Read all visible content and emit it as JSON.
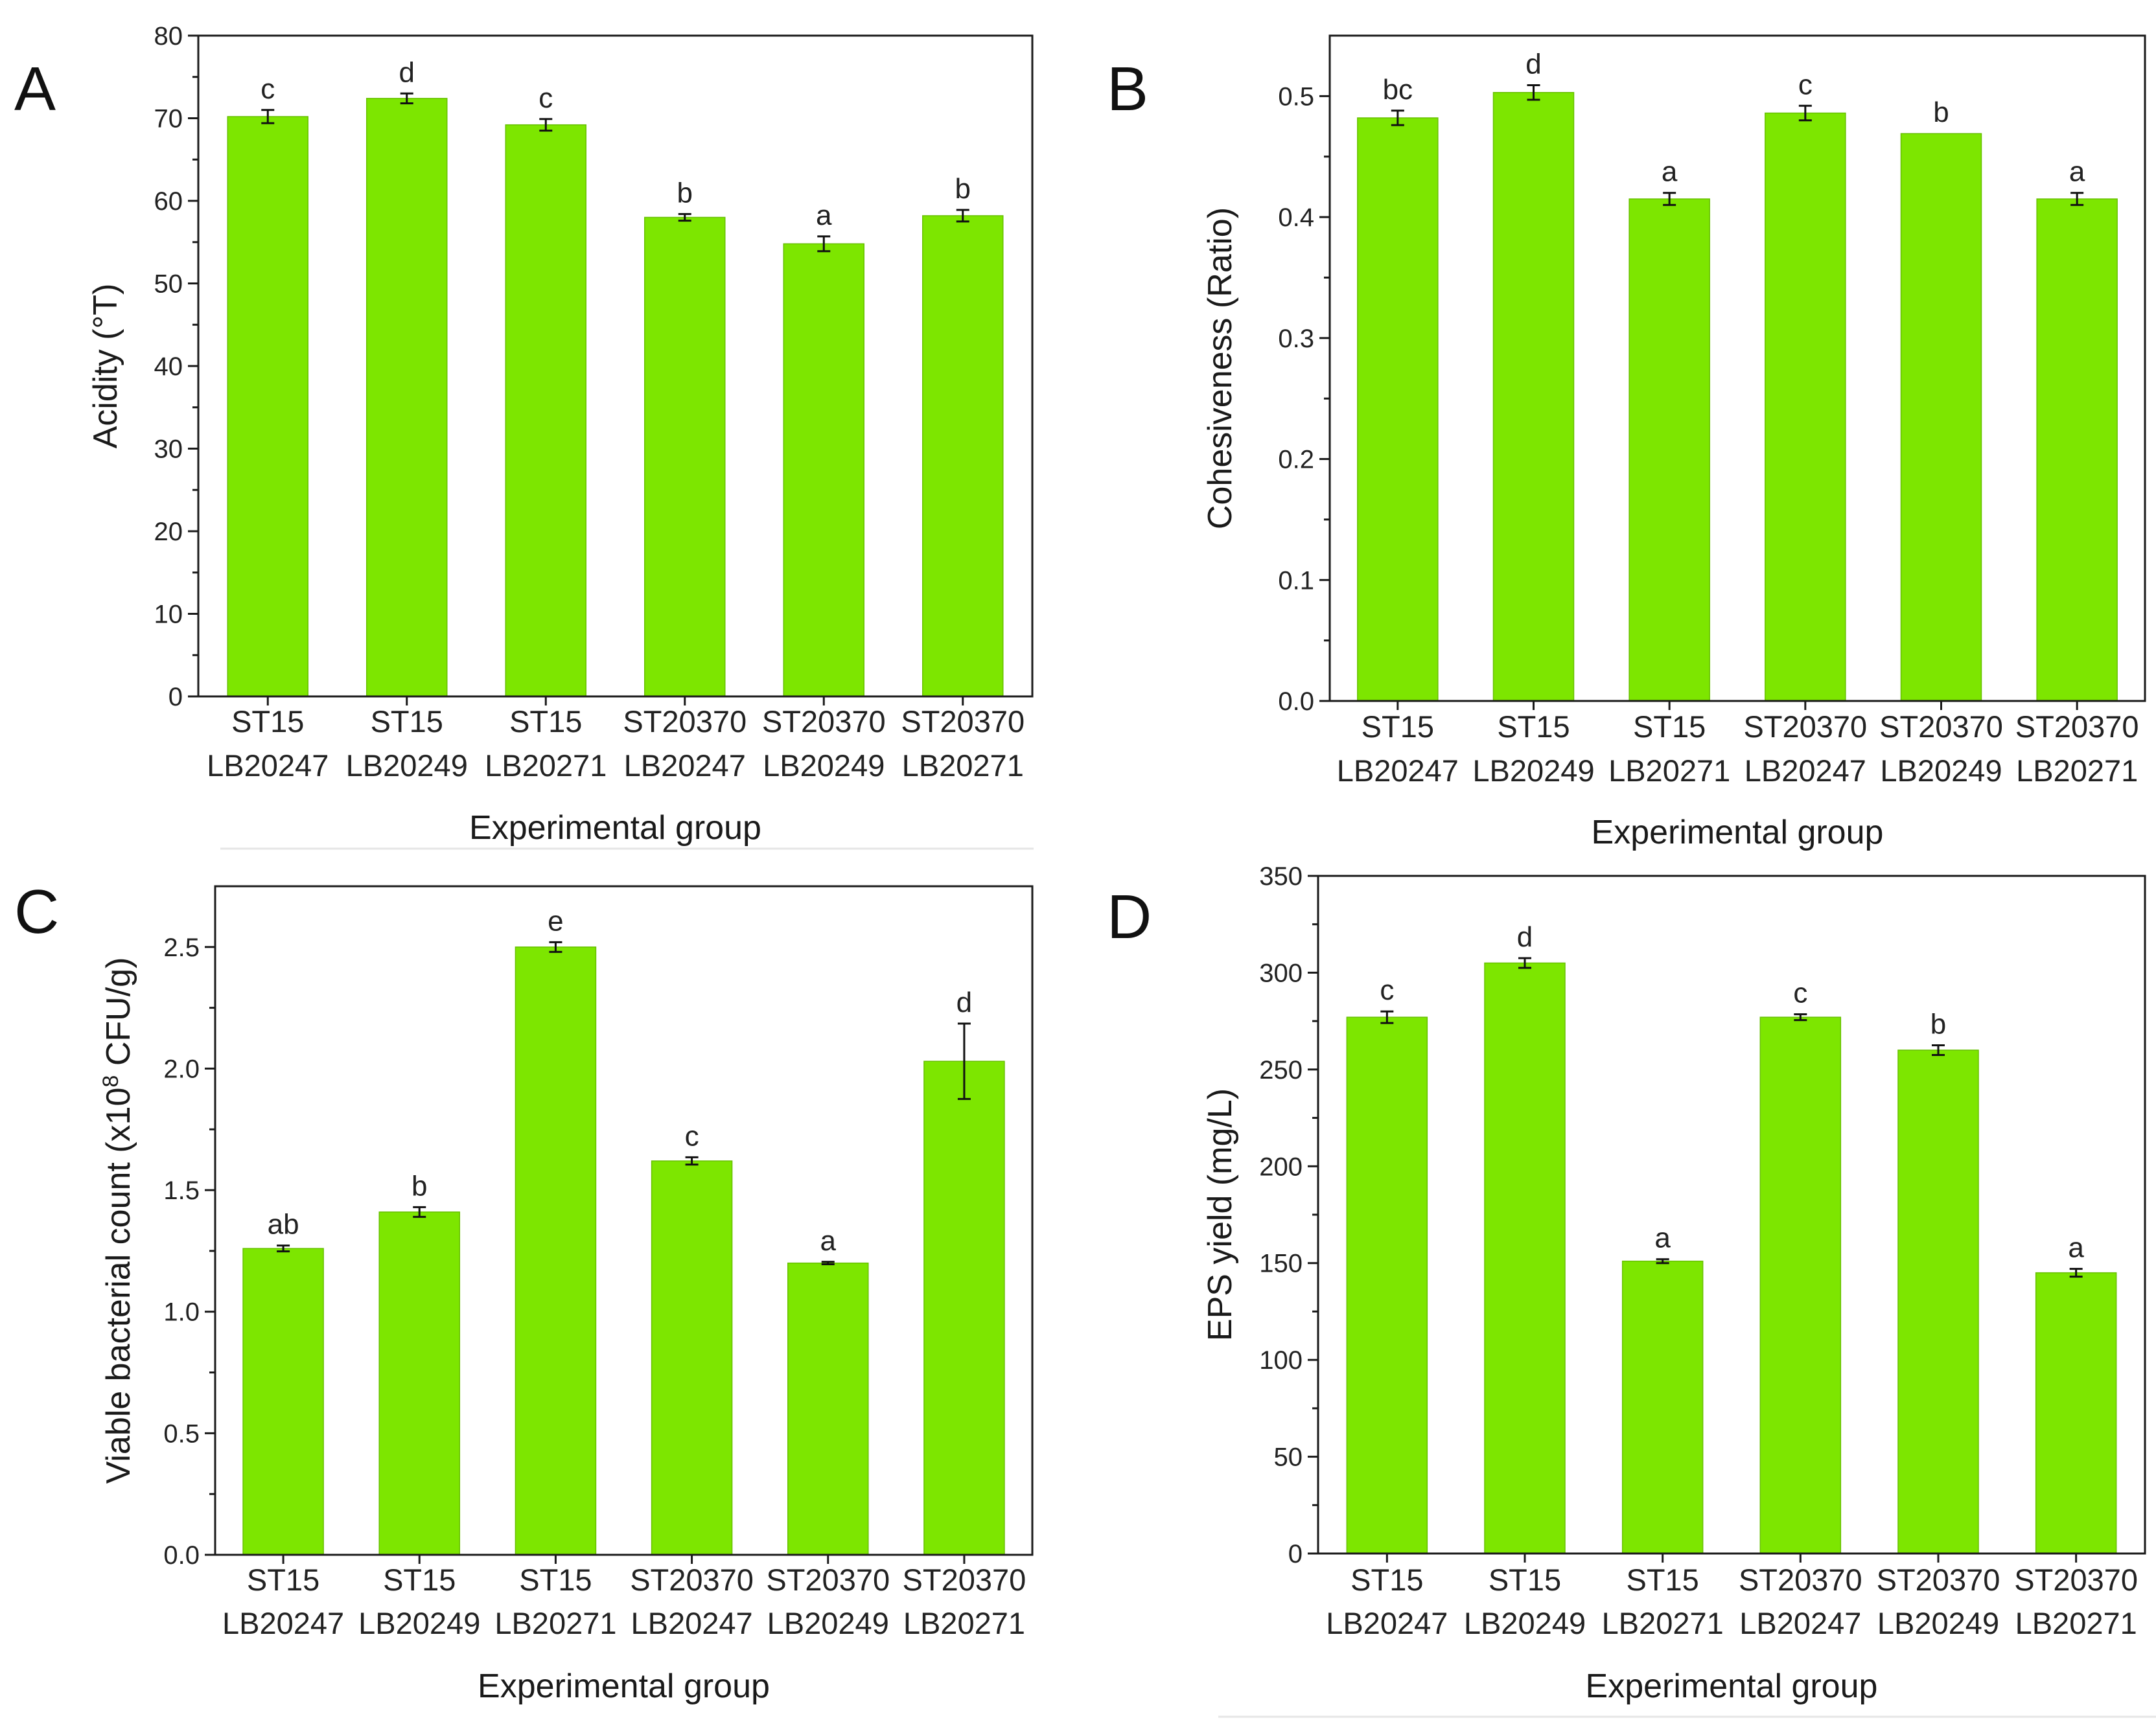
{
  "bar_color": "#7de600",
  "bar_edge_color": "#66c000",
  "axis_color": "#1a1a1a",
  "divider_color": "#e6e6e6",
  "chart_data": [
    {
      "panel": "A",
      "type": "bar",
      "categories": [
        [
          "ST15",
          "LB20247"
        ],
        [
          "ST15",
          "LB20249"
        ],
        [
          "ST15",
          "LB20271"
        ],
        [
          "ST20370",
          "LB20247"
        ],
        [
          "ST20370",
          "LB20249"
        ],
        [
          "ST20370",
          "LB20271"
        ]
      ],
      "values": [
        70.2,
        72.4,
        69.2,
        58.0,
        54.8,
        58.2
      ],
      "errors": [
        0.8,
        0.6,
        0.7,
        0.4,
        0.9,
        0.7
      ],
      "significance": [
        "c",
        "d",
        "c",
        "b",
        "a",
        "b"
      ],
      "ylabel": "Acidity (°T)",
      "xlabel": "Experimental group",
      "ylim": [
        0,
        80
      ],
      "yticks": [
        0,
        10,
        20,
        30,
        40,
        50,
        60,
        70,
        80
      ],
      "ytick_labels": [
        "0",
        "10",
        "20",
        "30",
        "40",
        "50",
        "60",
        "70",
        "80"
      ]
    },
    {
      "panel": "B",
      "type": "bar",
      "categories": [
        [
          "ST15",
          "LB20247"
        ],
        [
          "ST15",
          "LB20249"
        ],
        [
          "ST15",
          "LB20271"
        ],
        [
          "ST20370",
          "LB20247"
        ],
        [
          "ST20370",
          "LB20249"
        ],
        [
          "ST20370",
          "LB20271"
        ]
      ],
      "values": [
        0.482,
        0.503,
        0.415,
        0.486,
        0.469,
        0.415
      ],
      "errors": [
        0.006,
        0.006,
        0.005,
        0.006,
        0.0,
        0.005
      ],
      "significance": [
        "bc",
        "d",
        "a",
        "c",
        "b",
        "a"
      ],
      "ylabel": "Cohesiveness (Ratio)",
      "xlabel": "Experimental group",
      "ylim": [
        0,
        0.55
      ],
      "yticks": [
        0,
        0.1,
        0.2,
        0.3,
        0.4,
        0.5
      ],
      "ytick_labels": [
        "0.0",
        "0.1",
        "0.2",
        "0.3",
        "0.4",
        "0.5"
      ]
    },
    {
      "panel": "C",
      "type": "bar",
      "categories": [
        [
          "ST15",
          "LB20247"
        ],
        [
          "ST15",
          "LB20249"
        ],
        [
          "ST15",
          "LB20271"
        ],
        [
          "ST20370",
          "LB20247"
        ],
        [
          "ST20370",
          "LB20249"
        ],
        [
          "ST20370",
          "LB20271"
        ]
      ],
      "values": [
        1.26,
        1.41,
        2.5,
        1.62,
        1.2,
        2.03
      ],
      "errors": [
        0.012,
        0.02,
        0.02,
        0.015,
        0.005,
        0.155
      ],
      "significance": [
        "ab",
        "b",
        "e",
        "c",
        "a",
        "d"
      ],
      "ylabel_parts": [
        "Viable bacterial count (x10",
        "8",
        " CFU/g)"
      ],
      "xlabel": "Experimental group",
      "ylim": [
        0,
        2.75
      ],
      "yticks": [
        0,
        0.5,
        1.0,
        1.5,
        2.0,
        2.5
      ],
      "ytick_labels": [
        "0.0",
        "0.5",
        "1.0",
        "1.5",
        "2.0",
        "2.5"
      ]
    },
    {
      "panel": "D",
      "type": "bar",
      "categories": [
        [
          "ST15",
          "LB20247"
        ],
        [
          "ST15",
          "LB20249"
        ],
        [
          "ST15",
          "LB20271"
        ],
        [
          "ST20370",
          "LB20247"
        ],
        [
          "ST20370",
          "LB20249"
        ],
        [
          "ST20370",
          "LB20271"
        ]
      ],
      "values": [
        277,
        305,
        151,
        277,
        260,
        145
      ],
      "errors": [
        3,
        2.5,
        1,
        1.5,
        2.5,
        2
      ],
      "significance": [
        "c",
        "d",
        "a",
        "c",
        "b",
        "a"
      ],
      "ylabel": "EPS yield (mg/L)",
      "xlabel": "Experimental group",
      "ylim": [
        0,
        350
      ],
      "yticks": [
        0,
        50,
        100,
        150,
        200,
        250,
        300,
        350
      ],
      "ytick_labels": [
        "0",
        "50",
        "100",
        "150",
        "200",
        "250",
        "300",
        "350"
      ]
    }
  ]
}
